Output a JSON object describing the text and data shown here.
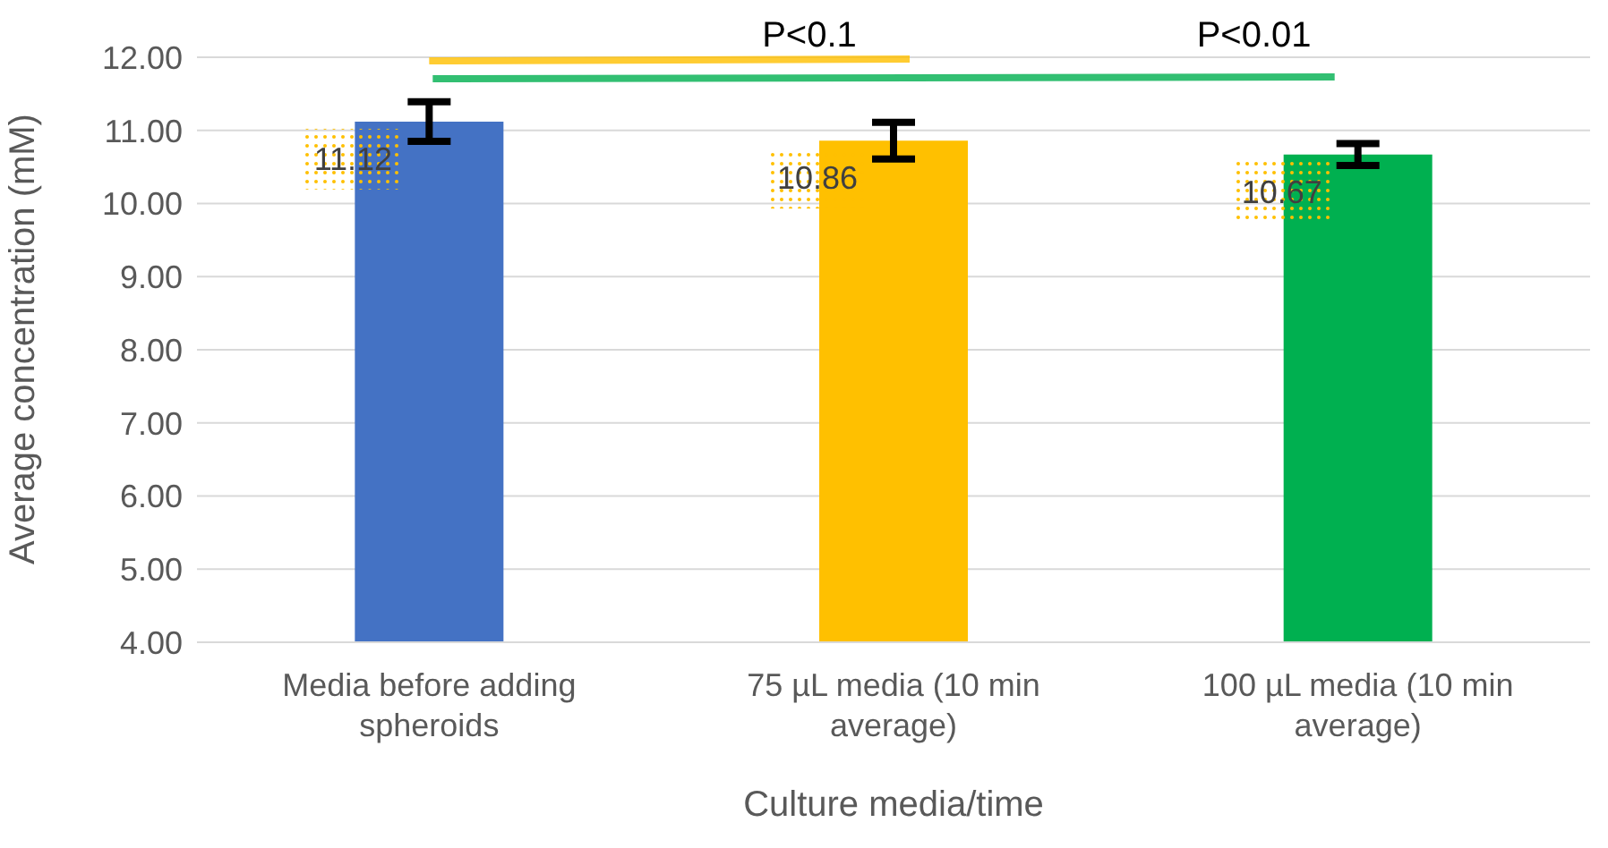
{
  "chart_data": {
    "type": "bar",
    "xlabel": "Culture media/time",
    "ylabel": "Average concentration (mM)",
    "categories": [
      "Media before adding spheroids",
      "75 µL media (10 min average)",
      "100 µL media (10 min average)"
    ],
    "values": [
      11.12,
      10.86,
      10.67
    ],
    "colors": [
      "#4472c4",
      "#ffc000",
      "#00b050"
    ],
    "errors": [
      0.27,
      0.25,
      0.15
    ],
    "ylim": [
      4,
      12
    ],
    "yticks": [
      {
        "value": 4,
        "label": "4.00"
      },
      {
        "value": 5,
        "label": "5.00"
      },
      {
        "value": 6,
        "label": "6.00"
      },
      {
        "value": 7,
        "label": "7.00"
      },
      {
        "value": 8,
        "label": "8.00"
      },
      {
        "value": 9,
        "label": "9.00"
      },
      {
        "value": 10,
        "label": "10.00"
      },
      {
        "value": 11,
        "label": "11.00"
      },
      {
        "value": 12,
        "label": "12.00"
      }
    ],
    "grid": "y",
    "data_labels": true,
    "annotations": [
      "P<0.1",
      "P<0.01"
    ]
  }
}
